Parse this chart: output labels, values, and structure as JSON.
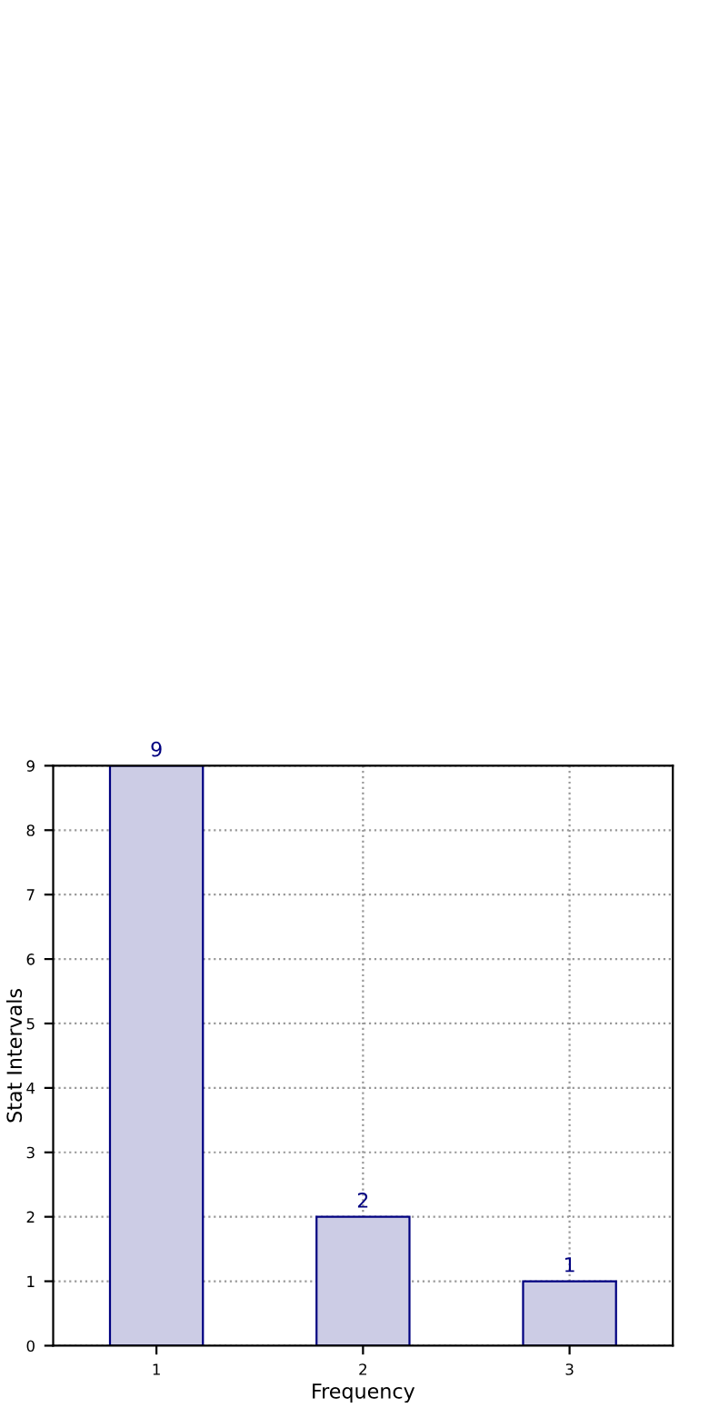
{
  "chart_data": {
    "type": "bar",
    "xlabel": "Frequency",
    "ylabel": "Stat Intervals",
    "categories": [
      "1",
      "2",
      "3"
    ],
    "values": [
      9,
      2,
      1
    ],
    "color": "#cccce5",
    "ylim": [
      0,
      9
    ],
    "yticks": [
      0,
      1,
      2,
      3,
      4,
      5,
      6,
      7,
      8,
      9
    ],
    "grid": true,
    "data_labels": true
  }
}
